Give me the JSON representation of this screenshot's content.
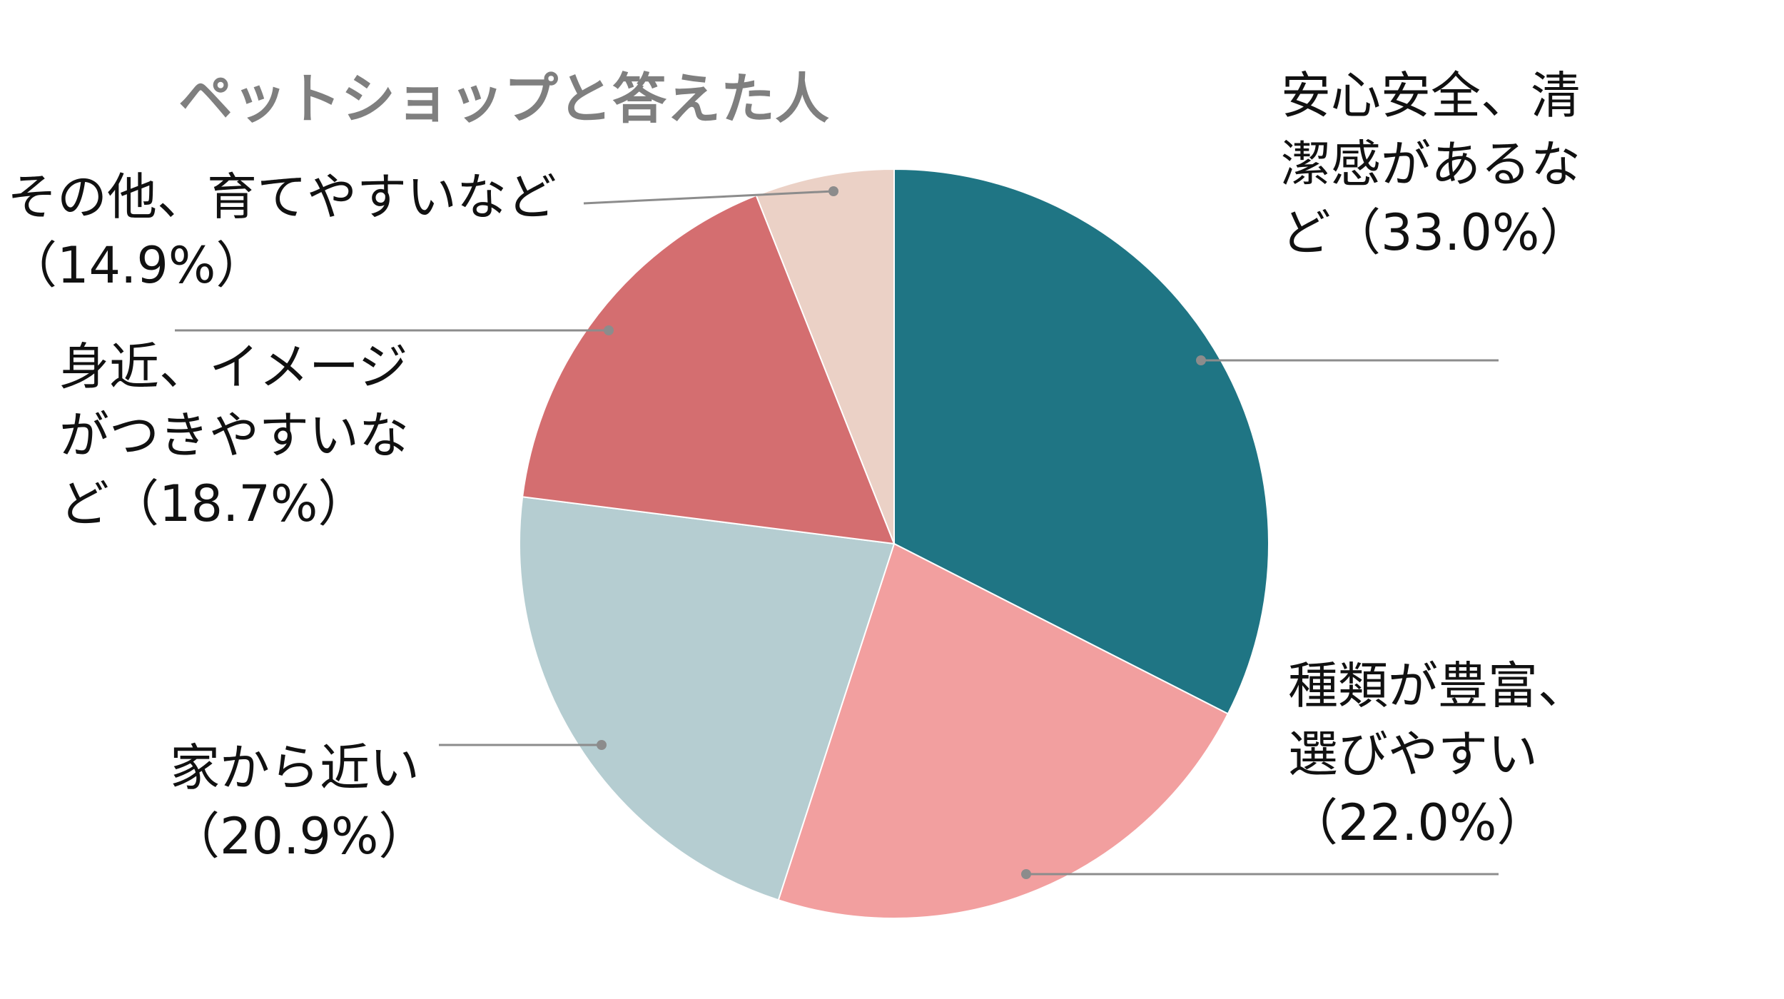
{
  "chart_data": {
    "type": "pie",
    "title": "ペットショップと答えた人",
    "slices": [
      {
        "lines": [
          "安心安全、清",
          "潔感があるな",
          "ど（33.0%）"
        ],
        "value": 33.0,
        "color": "#1f7584"
      },
      {
        "lines": [
          "種類が豊富、",
          "選びやすい",
          "（22.0%）"
        ],
        "value": 22.0,
        "color": "#f29f9f"
      },
      {
        "lines": [
          "家から近い",
          "（20.9%）"
        ],
        "value": 20.9,
        "color": "#b5cdd1"
      },
      {
        "lines": [
          "身近、イメージ",
          "がつきやすいな",
          "ど（18.7%）"
        ],
        "value": 18.7,
        "color": "#d46e70"
      },
      {
        "lines": [
          "その他、育てやすいなど",
          "（14.9%）"
        ],
        "value": 14.9,
        "color": "#ebd1c6"
      }
    ]
  }
}
